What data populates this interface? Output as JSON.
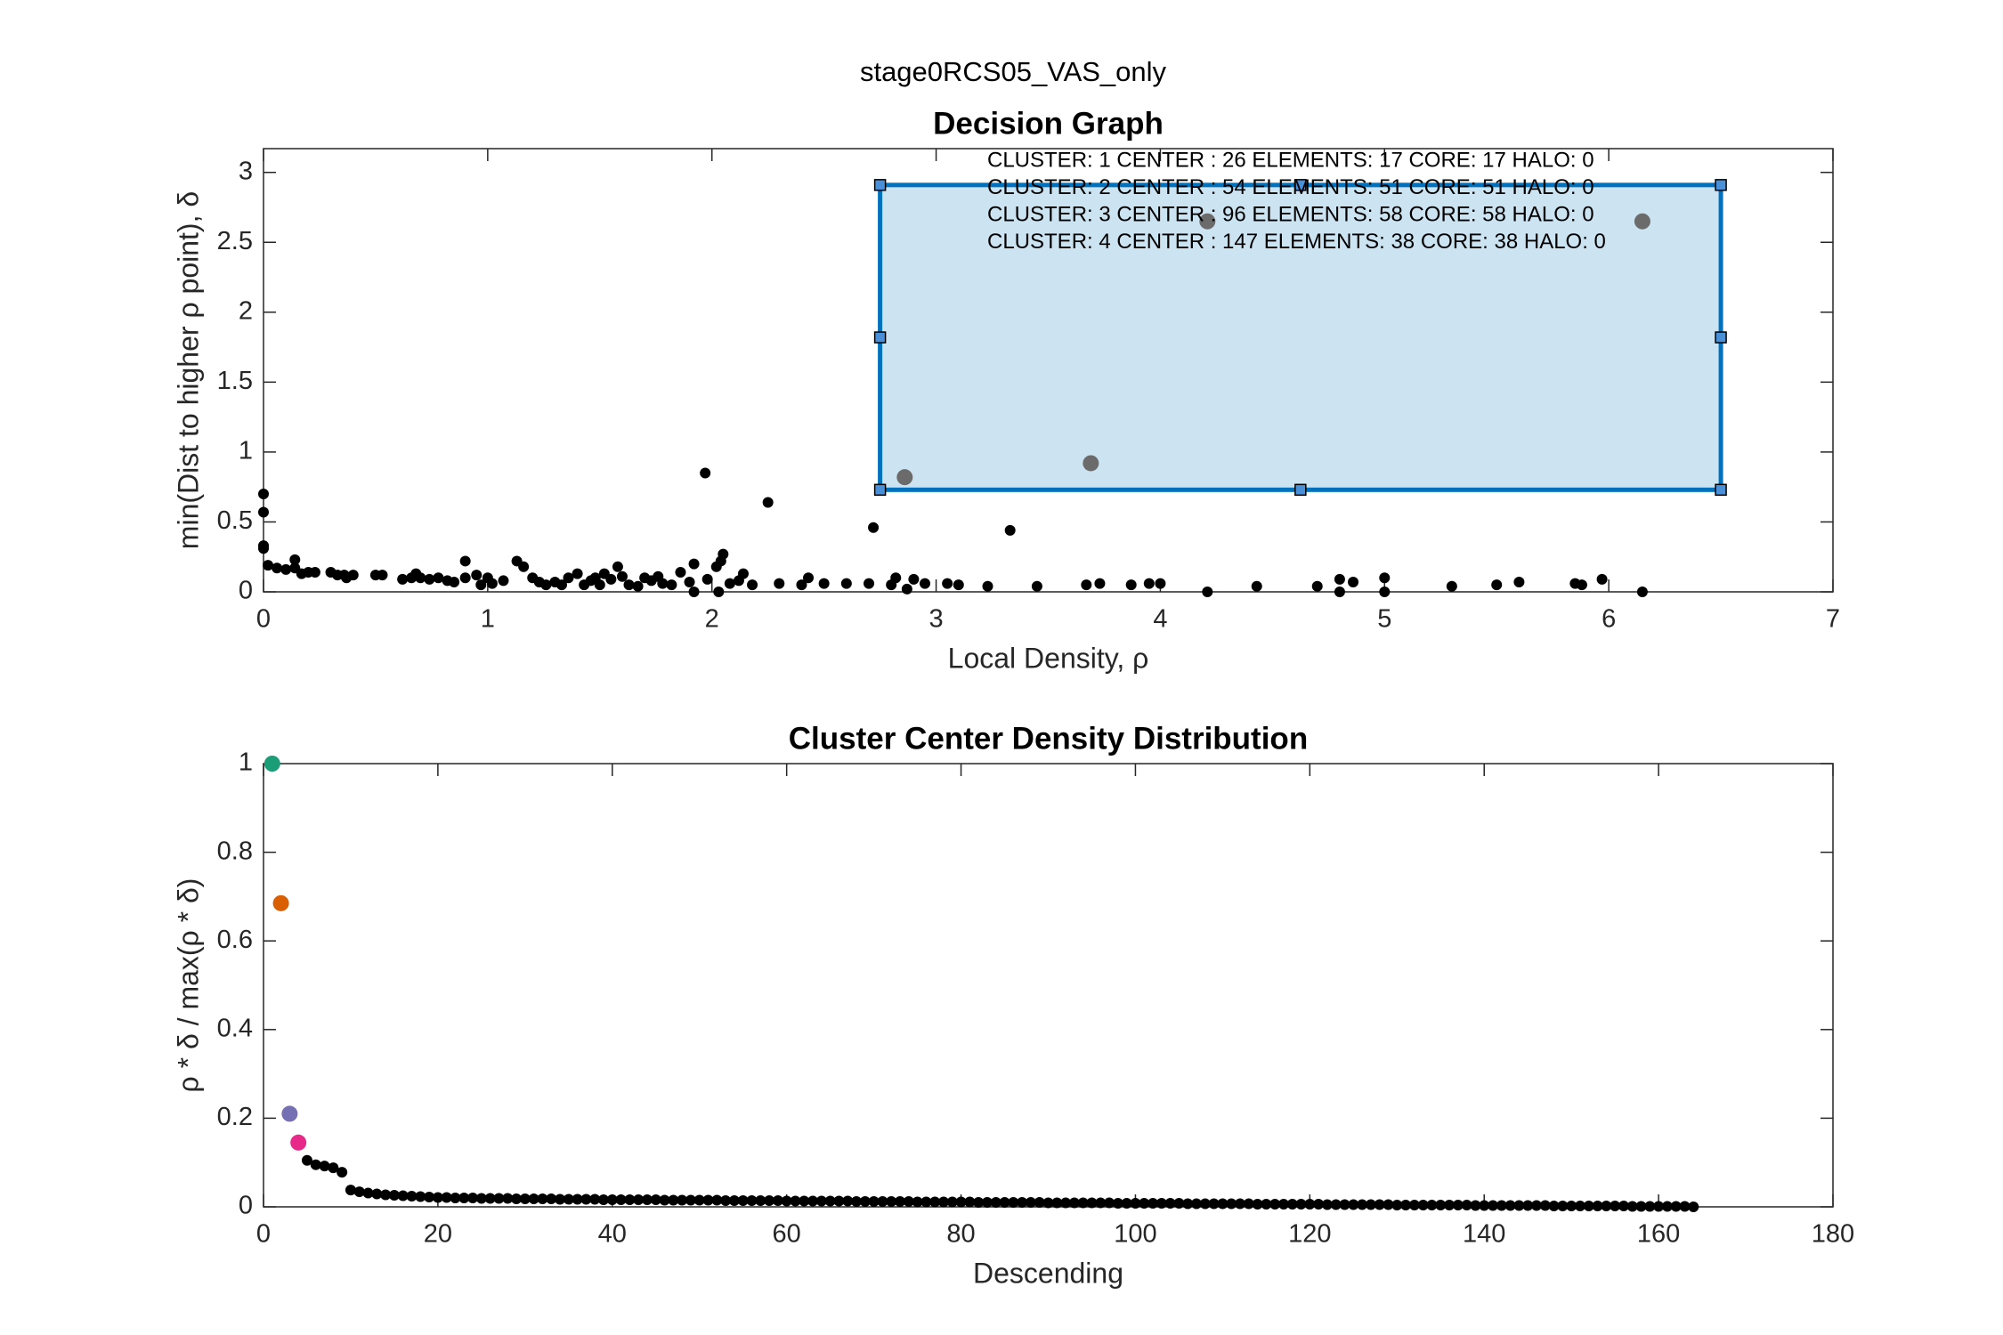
{
  "figure_title": "stage0RCS05_VAS_only",
  "chart_data": [
    {
      "type": "scatter",
      "title": "Decision Graph",
      "x_label": "Local Density, ρ",
      "y_label": "min(Dist to higher ρ point), δ",
      "xlim": [
        0,
        7
      ],
      "ylim": [
        0,
        3.17
      ],
      "xticks": [
        0,
        1,
        2,
        3,
        4,
        5,
        6,
        7
      ],
      "yticks": [
        0,
        0.5,
        1,
        1.5,
        2,
        2.5,
        3
      ],
      "selection": {
        "x": [
          2.75,
          6.5
        ],
        "y": [
          0.73,
          2.91
        ]
      },
      "annotations": [
        "CLUSTER: 1 CENTER : 26 ELEMENTS: 17 CORE: 17 HALO: 0",
        "CLUSTER: 2 CENTER : 54 ELEMENTS: 51 CORE: 51 HALO: 0",
        "CLUSTER: 3 CENTER : 96 ELEMENTS: 58 CORE: 58 HALO: 0",
        "CLUSTER: 4 CENTER : 147 ELEMENTS: 38 CORE: 38 HALO: 0"
      ],
      "series": [
        {
          "color": "#000000",
          "x": [
            0,
            0,
            0,
            0,
            0.02,
            0.06,
            0.1,
            0.14,
            0.14,
            0.17,
            0.2,
            0.23,
            0.3,
            0.33,
            0.36,
            0.37,
            0.4,
            0.5,
            0.53,
            0.62,
            0.66,
            0.68,
            0.7,
            0.74,
            0.78,
            0.82,
            0.85,
            0.9,
            0.9,
            0.95,
            0.97,
            1.0,
            1.02,
            1.07,
            1.13,
            1.16,
            1.2,
            1.23,
            1.26,
            1.3,
            1.33,
            1.36,
            1.4,
            1.43,
            1.46,
            1.48,
            1.5,
            1.52,
            1.55,
            1.58,
            1.6,
            1.63,
            1.67,
            1.7,
            1.73,
            1.76,
            1.78,
            1.82,
            1.86,
            1.9,
            1.92,
            1.92,
            1.97,
            1.98,
            2.02,
            2.04,
            2.03,
            2.05,
            2.08,
            2.12,
            2.14,
            2.18,
            2.25,
            2.3,
            2.4,
            2.43,
            2.5,
            2.6,
            2.7,
            2.72,
            2.8,
            2.82,
            2.87,
            2.9,
            2.95,
            3.05,
            3.1,
            3.23,
            3.33,
            3.45,
            3.67,
            3.73,
            3.87,
            3.95,
            4.0,
            4.21,
            4.43,
            4.7,
            4.8,
            4.8,
            4.86,
            5.0,
            5.0,
            5.3,
            5.5,
            5.6,
            5.85,
            5.88,
            5.97,
            6.15
          ],
          "values": [
            0.7,
            0.57,
            0.33,
            0.31,
            0.19,
            0.17,
            0.16,
            0.17,
            0.23,
            0.13,
            0.14,
            0.14,
            0.14,
            0.12,
            0.12,
            0.1,
            0.12,
            0.12,
            0.12,
            0.09,
            0.1,
            0.13,
            0.1,
            0.09,
            0.1,
            0.08,
            0.07,
            0.1,
            0.22,
            0.12,
            0.05,
            0.1,
            0.06,
            0.08,
            0.22,
            0.18,
            0.1,
            0.07,
            0.05,
            0.07,
            0.05,
            0.1,
            0.13,
            0.05,
            0.08,
            0.1,
            0.05,
            0.13,
            0.09,
            0.18,
            0.11,
            0.05,
            0.04,
            0.1,
            0.08,
            0.11,
            0.06,
            0.05,
            0.14,
            0.07,
            0.2,
            0,
            0.85,
            0.09,
            0.18,
            0.22,
            0,
            0.27,
            0.06,
            0.08,
            0.13,
            0.05,
            0.64,
            0.06,
            0.05,
            0.1,
            0.06,
            0.06,
            0.06,
            0.46,
            0.05,
            0.1,
            0.02,
            0.09,
            0.06,
            0.06,
            0.05,
            0.04,
            0.44,
            0.04,
            0.05,
            0.06,
            0.05,
            0.06,
            0.06,
            0,
            0.04,
            0.04,
            0.09,
            0,
            0.07,
            0.1,
            0,
            0.04,
            0.05,
            0.07,
            0.06,
            0.05,
            0.09,
            0
          ]
        },
        {
          "color": "#6b6b6b",
          "x": [
            2.86,
            3.69,
            4.21,
            6.15
          ],
          "values": [
            0.82,
            0.92,
            2.65,
            2.65
          ]
        }
      ]
    },
    {
      "type": "scatter",
      "title": "Cluster Center Density Distribution",
      "x_label": "Descending",
      "y_label": "ρ * δ / max(ρ * δ)",
      "xlim": [
        0,
        180
      ],
      "ylim": [
        0,
        1
      ],
      "xticks": [
        0,
        20,
        40,
        60,
        80,
        100,
        120,
        140,
        160,
        180
      ],
      "yticks": [
        0,
        0.2,
        0.4,
        0.6,
        0.8,
        1
      ],
      "series": [
        {
          "colors": [
            "#1b9e77",
            "#d95f02",
            "#7570b3",
            "#e7298a"
          ],
          "x": [
            1,
            2,
            3,
            4
          ],
          "values": [
            1,
            0.685,
            0.21,
            0.145
          ]
        },
        {
          "color": "#000000",
          "x": [
            5,
            6,
            7,
            8,
            9,
            10,
            11,
            12,
            13,
            14,
            15,
            16,
            17,
            18,
            19,
            20,
            21,
            22,
            23,
            24,
            25,
            26,
            27,
            28,
            29,
            30,
            31,
            32,
            33,
            34,
            35,
            36,
            37,
            38,
            39,
            40,
            41,
            42,
            43,
            44,
            45,
            46,
            47,
            48,
            49,
            50,
            51,
            52,
            53,
            54,
            55,
            56,
            57,
            58,
            59,
            60,
            61,
            62,
            63,
            64,
            65,
            66,
            67,
            68,
            69,
            70,
            71,
            72,
            73,
            74,
            75,
            76,
            77,
            78,
            79,
            80,
            81,
            82,
            83,
            84,
            85,
            86,
            87,
            88,
            89,
            90,
            91,
            92,
            93,
            94,
            95,
            96,
            97,
            98,
            99,
            100,
            101,
            102,
            103,
            104,
            105,
            106,
            107,
            108,
            109,
            110,
            111,
            112,
            113,
            114,
            115,
            116,
            117,
            118,
            119,
            120,
            121,
            122,
            123,
            124,
            125,
            126,
            127,
            128,
            129,
            130,
            131,
            132,
            133,
            134,
            135,
            136,
            137,
            138,
            139,
            140,
            141,
            142,
            143,
            144,
            145,
            146,
            147,
            148,
            149,
            150,
            151,
            152,
            153,
            154,
            155,
            156,
            157,
            158,
            159,
            160,
            161,
            162,
            163,
            164
          ],
          "values": [
            0.105,
            0.095,
            0.092,
            0.088,
            0.078,
            0.038,
            0.034,
            0.031,
            0.029,
            0.027,
            0.026,
            0.025,
            0.024,
            0.023,
            0.022,
            0.021,
            0.021,
            0.02,
            0.02,
            0.02,
            0.019,
            0.019,
            0.019,
            0.019,
            0.018,
            0.018,
            0.018,
            0.018,
            0.018,
            0.017,
            0.017,
            0.017,
            0.017,
            0.017,
            0.016,
            0.016,
            0.016,
            0.016,
            0.016,
            0.016,
            0.016,
            0.015,
            0.015,
            0.015,
            0.015,
            0.015,
            0.015,
            0.015,
            0.014,
            0.014,
            0.014,
            0.014,
            0.014,
            0.014,
            0.014,
            0.013,
            0.013,
            0.013,
            0.013,
            0.013,
            0.013,
            0.013,
            0.013,
            0.012,
            0.012,
            0.012,
            0.012,
            0.012,
            0.012,
            0.012,
            0.011,
            0.011,
            0.011,
            0.011,
            0.011,
            0.011,
            0.011,
            0.01,
            0.01,
            0.01,
            0.01,
            0.01,
            0.01,
            0.01,
            0.01,
            0.009,
            0.009,
            0.009,
            0.009,
            0.009,
            0.009,
            0.009,
            0.009,
            0.008,
            0.008,
            0.008,
            0.008,
            0.008,
            0.008,
            0.008,
            0.008,
            0.007,
            0.007,
            0.007,
            0.007,
            0.007,
            0.007,
            0.007,
            0.007,
            0.006,
            0.006,
            0.006,
            0.006,
            0.006,
            0.006,
            0.006,
            0.006,
            0.005,
            0.005,
            0.005,
            0.005,
            0.005,
            0.005,
            0.005,
            0.005,
            0.004,
            0.004,
            0.004,
            0.004,
            0.004,
            0.004,
            0.004,
            0.004,
            0.004,
            0.003,
            0.003,
            0.003,
            0.003,
            0.003,
            0.003,
            0.003,
            0.003,
            0.003,
            0.002,
            0.002,
            0.002,
            0.002,
            0.002,
            0.002,
            0.002,
            0.002,
            0.002,
            0.001,
            0.001,
            0.001,
            0.001,
            0.001,
            0.001,
            0.001,
            0
          ]
        }
      ]
    }
  ]
}
